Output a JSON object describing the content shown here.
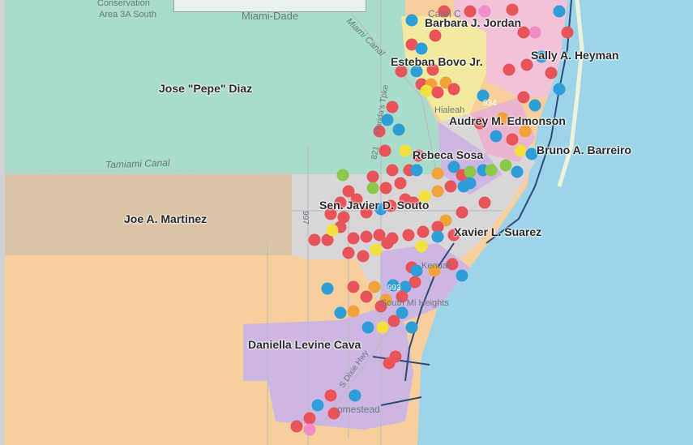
{
  "map": {
    "colors": {
      "water": "#9dd4ea",
      "district_green": "#a9dccb",
      "district_tan": "#d9c4a5",
      "district_orange": "#f6cf9c",
      "district_purple": "#cdb6e2",
      "district_pink": "#f2c2d8",
      "district_yellow": "#f3ea9f",
      "urban_grey": "#d8d6d8",
      "road_dark": "#2d4a7a",
      "dot_red": "#e8545a",
      "dot_blue": "#2e9ed8",
      "dot_orange": "#f2a23a",
      "dot_yellow": "#f4e03c",
      "dot_green": "#8cc84a",
      "dot_pink": "#f28cc8"
    },
    "commissioners": [
      {
        "name": "Barbara J. Jordan"
      },
      {
        "name": "Esteban Bovo Jr."
      },
      {
        "name": "Sally A. Heyman"
      },
      {
        "name": "Jose \"Pepe\" Diaz"
      },
      {
        "name": "Audrey M. Edmonson"
      },
      {
        "name": "Bruno A. Barreiro"
      },
      {
        "name": "Rebeca Sosa"
      },
      {
        "name": "Joe A. Martinez"
      },
      {
        "name": "Sen. Javier D. Souto"
      },
      {
        "name": "Xavier L. Suarez"
      },
      {
        "name": "Daniella Levine Cava"
      }
    ],
    "geo_labels": {
      "conservation_1": "Conservation",
      "conservation_2": "Area 3A South",
      "county": "Miami-Dade",
      "miami_canal": "Miami Canal",
      "tamiami_canal": "Tamiami Canal",
      "hialeah": "Hialeah",
      "kendall": "Kendall",
      "south_heights": "South Mi Heights",
      "homestead": "omestead",
      "dixie_hwy": "S Dixie Hwy",
      "turnpike": "Florida's Tpke",
      "road_821": "821",
      "road_997": "997",
      "road_934": "934",
      "road_993": "993",
      "carol_city": "Carol C"
    },
    "complaint_dots": [
      {
        "color": "blue"
      },
      {
        "color": "red"
      },
      {
        "color": "red"
      },
      {
        "color": "pink"
      },
      {
        "color": "red"
      },
      {
        "color": "blue"
      },
      {
        "color": "red"
      },
      {
        "color": "pink"
      }
    ]
  }
}
